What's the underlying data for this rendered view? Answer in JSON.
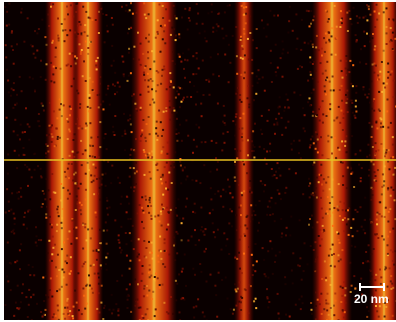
{
  "image": {
    "description_colors": {
      "background": "#0a0000",
      "band_core": "#ff8a1a",
      "band_hot": "#ffd640",
      "band_edge": "#c0200a",
      "line_profile": "#e8c020"
    },
    "scale_bar": {
      "label": "20 nm"
    }
  }
}
